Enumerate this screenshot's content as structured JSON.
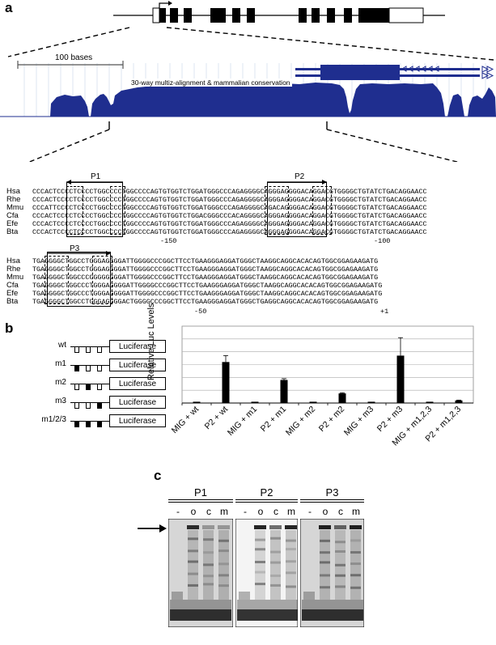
{
  "panels": {
    "a": "a",
    "b": "b",
    "c": "c"
  },
  "panel_a": {
    "scale_label": "100 bases",
    "track_label": "30-way multiz-alignment & mammalian conservation",
    "species": [
      "Hsa",
      "Rhe",
      "Mmu",
      "Cfa",
      "Efe",
      "Bta"
    ],
    "block1": {
      "p1_label": "P1",
      "p2_label": "P2",
      "rows": [
        "CCCACTCCCCTCCCCTGGCCCCTGGCCCCAGTGTGGTCTGGATGGGCCCAGAGGGGCAGGGAGGGGACAGGACGTGGGGCTGTATCTGACAGGAACC",
        "CCCACTCCCCTCCCCTGGCCCCTGGCCCCAGTGTGGTCTGGATGGGCCCAGAGGGGCAGGGAGGGGACAGGACGTGGGGCTGTATCTGACAGGAACC",
        "CCCATTCCCCTCCCCTGGCCCCTGGCCCCAGTGTGGTCTGGATGGGCCCAGAGGGGCAGACAGGGGACAGGACGTGGGGCTGTATCTGACAGGAACC",
        "CCCACTCCCCTCCCCTGGCCCCTGGCCCCAGTGTGGTCTGGACGGGCCCACAGGGGCAGGGAGGGGACAGGACGTGGGGCTGTATCTGACAGGAACC",
        "CCCACTCCCCTCCCCTGGCCCCTGGCCCCAGTGTGGTCTGGATGGGCCCAGAGGGGCAGGGAGGGGACAGGACGTGGGGCTGTATCTGACAGGAACC",
        "CCCACTCCCCTCCCCTGGCCCCTGGCCCCAGTGTGGTCTGGATGGGCCCAGAGGGGCAGGGAGGGGACAGGACGTGGGGCTGTATCTGACAGGAACC"
      ],
      "pos_left": "-150",
      "pos_right": "-100"
    },
    "block2": {
      "p3_label": "P3",
      "rows": [
        "TGAGGGGCTGGCCTGGGAGGGGATTGGGGCCCGGCTTCCTGAAGGGAGGATGGGCTAAGGCAGGCACACAGTGGCGGAGAAGATG",
        "TGAGGGGCTGGCCTGGGAGGGGATTGGGGCCCGGCTTCCTGAAGGGAGGATGGGCTAAGGCAGGCACACAGTGGCGGAGAAGATG",
        "TGAGGGGCTGGCCCCGGGGGGGATTGGGGCCCGGCTTCCTGAAGGGAGGATGGGCTAAGGCAGGCACACAGTGGCGGAGAAGATG",
        "TGAGGGGCTGGCCCTGGGAGGGGATTGGGGCCCGGCTTCCTGAAGGGAGGATGGGCTAAGGCAGGCACACAGTGGCGGAGAAGATG",
        "TGAGGGGCTGGCCCTGGGAGGGGATTGGGGCCCGGCTTCCTGAAGGGAGGATGGGCTAAGGCAGGCACACAGTGGCGGAGAAGATG",
        "TGAGGGGCTGGCCTGGGAGGGGACTGGGGCCCGGCTTCCTGAAGGGAGGATGGGCTGAGGCAGGCACACAGTGGCGGAGAAGATG"
      ],
      "pos_left": "-50",
      "pos_right": "+1"
    }
  },
  "panel_b": {
    "constructs": [
      {
        "label": "wt",
        "mut": [
          false,
          false,
          false
        ]
      },
      {
        "label": "m1",
        "mut": [
          true,
          false,
          false
        ]
      },
      {
        "label": "m2",
        "mut": [
          false,
          true,
          false
        ]
      },
      {
        "label": "m3",
        "mut": [
          false,
          false,
          true
        ]
      },
      {
        "label": "m1/2/3",
        "mut": [
          true,
          true,
          true
        ]
      }
    ],
    "reporter_label": "Luciferase",
    "chart_data": {
      "type": "bar",
      "ylabel": "Relative Luc Levels",
      "categories": [
        "MIG + wt",
        "P2 + wt",
        "MIG + m1",
        "P2 + m1",
        "MIG + m2",
        "P2 + m2",
        "MIG + m3",
        "P2 + m3",
        "MIG + m1,2,3",
        "P2 + m1,2,3"
      ],
      "values": [
        1,
        32,
        1,
        18,
        1,
        7.5,
        1,
        37,
        1,
        2
      ],
      "errors": [
        0,
        5,
        0,
        1,
        0,
        0.5,
        0,
        14,
        0,
        0.3
      ],
      "ylim": [
        0,
        60
      ],
      "gridlines": [
        10,
        20,
        30,
        40,
        50,
        60
      ],
      "grid": true
    }
  },
  "panel_c": {
    "gels": [
      {
        "title": "P1",
        "lanes": [
          "-",
          "o",
          "c",
          "m"
        ]
      },
      {
        "title": "P2",
        "lanes": [
          "-",
          "o",
          "c",
          "m"
        ]
      },
      {
        "title": "P3",
        "lanes": [
          "-",
          "o",
          "c",
          "m"
        ]
      }
    ]
  }
}
